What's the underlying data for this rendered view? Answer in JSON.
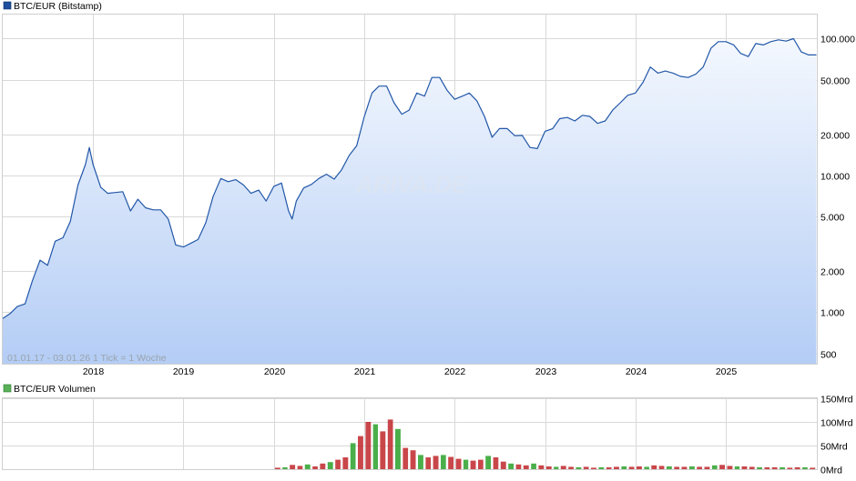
{
  "colors": {
    "price_line": "#2257a8",
    "price_fill_top": "#f4f8fe",
    "price_fill_bottom": "#b4cdf5",
    "volume_up": "#2aa12a",
    "volume_down": "#c0262a",
    "grid": "#d9d9d9",
    "legend_price_box": "#1f4f9e",
    "legend_volume_box": "#58b158"
  },
  "chart_data": [
    {
      "type": "line",
      "legend": "BTC/EUR (Bitstamp)",
      "y_scale": "log",
      "ylim": [
        420,
        150000
      ],
      "xlim": [
        "2017-01-01",
        "2026-01-03"
      ],
      "x_ticks": [
        "2018",
        "2019",
        "2020",
        "2021",
        "2022",
        "2023",
        "2024",
        "2025"
      ],
      "y_ticks": [
        {
          "value": 100000,
          "label": "100.000"
        },
        {
          "value": 50000,
          "label": "50.000"
        },
        {
          "value": 20000,
          "label": "20.000"
        },
        {
          "value": 10000,
          "label": "10.000"
        },
        {
          "value": 5000,
          "label": "5.000"
        },
        {
          "value": 2000,
          "label": "2.000"
        },
        {
          "value": 1000,
          "label": "1.000"
        },
        {
          "value": 500,
          "label": "500"
        }
      ],
      "watermark": "ARIVA.DE",
      "range_note": "01.01.17 - 03.01.26   1 Tick = 1 Woche",
      "series": [
        {
          "x": [
            "2017-01-01",
            "2017-02-01",
            "2017-03-01",
            "2017-04-01",
            "2017-05-01",
            "2017-06-01",
            "2017-07-01",
            "2017-08-01",
            "2017-09-01",
            "2017-10-01",
            "2017-11-01",
            "2017-12-01",
            "2017-12-17",
            "2018-01-01",
            "2018-02-01",
            "2018-03-01",
            "2018-04-01",
            "2018-05-01",
            "2018-06-01",
            "2018-07-01",
            "2018-08-01",
            "2018-09-01",
            "2018-10-01",
            "2018-11-01",
            "2018-12-01",
            "2019-01-01",
            "2019-02-01",
            "2019-03-01",
            "2019-04-01",
            "2019-05-01",
            "2019-06-01",
            "2019-07-01",
            "2019-08-01",
            "2019-09-01",
            "2019-10-01",
            "2019-11-01",
            "2019-12-01",
            "2020-01-01",
            "2020-02-01",
            "2020-03-01",
            "2020-03-15",
            "2020-04-01",
            "2020-05-01",
            "2020-06-01",
            "2020-07-01",
            "2020-08-01",
            "2020-09-01",
            "2020-10-01",
            "2020-11-01",
            "2020-12-01",
            "2021-01-01",
            "2021-02-01",
            "2021-03-01",
            "2021-04-01",
            "2021-05-01",
            "2021-06-01",
            "2021-07-01",
            "2021-08-01",
            "2021-09-01",
            "2021-10-01",
            "2021-11-01",
            "2021-12-01",
            "2022-01-01",
            "2022-02-01",
            "2022-03-01",
            "2022-04-01",
            "2022-05-01",
            "2022-06-01",
            "2022-07-01",
            "2022-08-01",
            "2022-09-01",
            "2022-10-01",
            "2022-11-01",
            "2022-12-01",
            "2023-01-01",
            "2023-02-01",
            "2023-03-01",
            "2023-04-01",
            "2023-05-01",
            "2023-06-01",
            "2023-07-01",
            "2023-08-01",
            "2023-09-01",
            "2023-10-01",
            "2023-11-01",
            "2023-12-01",
            "2024-01-01",
            "2024-02-01",
            "2024-03-01",
            "2024-04-01",
            "2024-05-01",
            "2024-06-01",
            "2024-07-01",
            "2024-08-01",
            "2024-09-01",
            "2024-10-01",
            "2024-11-01",
            "2024-12-01",
            "2025-01-01",
            "2025-02-01",
            "2025-03-01",
            "2025-04-01",
            "2025-05-01",
            "2025-06-01",
            "2025-07-01",
            "2025-08-01",
            "2025-09-01",
            "2025-10-01",
            "2025-11-01",
            "2025-12-01",
            "2026-01-01"
          ],
          "values": [
            900,
            980,
            1100,
            1150,
            1700,
            2400,
            2200,
            3300,
            3500,
            4600,
            8500,
            12000,
            16000,
            12000,
            8200,
            7400,
            7500,
            7600,
            5500,
            6700,
            5800,
            5600,
            5600,
            4800,
            3100,
            3000,
            3200,
            3400,
            4500,
            7000,
            9500,
            9000,
            9300,
            8500,
            7400,
            7800,
            6500,
            8300,
            8800,
            5500,
            4800,
            6500,
            8100,
            8600,
            9500,
            10200,
            9400,
            11000,
            14000,
            16500,
            27000,
            40000,
            45000,
            45000,
            34000,
            28000,
            30000,
            40000,
            38000,
            52000,
            52000,
            42000,
            36000,
            38000,
            40000,
            35000,
            27000,
            19000,
            22000,
            22000,
            19500,
            19600,
            16000,
            15700,
            21000,
            22000,
            26000,
            26500,
            25000,
            27500,
            27000,
            24000,
            25000,
            30000,
            34000,
            38500,
            40000,
            48000,
            62000,
            56000,
            58000,
            56000,
            53000,
            52000,
            55000,
            62000,
            85000,
            95000,
            95000,
            90000,
            78000,
            74000,
            92000,
            90000,
            95000,
            98000,
            96000,
            100000,
            80000,
            76000,
            76000
          ]
        }
      ]
    },
    {
      "type": "bar",
      "legend": "BTC/EUR Volumen",
      "ylim": [
        0,
        150
      ],
      "y_ticks": [
        {
          "value": 150,
          "label": "150Mrd"
        },
        {
          "value": 100,
          "label": "100Mrd"
        },
        {
          "value": 50,
          "label": "50Mrd"
        },
        {
          "value": 0,
          "label": "0Mrd"
        }
      ],
      "unit": "Mrd",
      "series": [
        {
          "x": [
            "2020-01",
            "2020-02",
            "2020-03",
            "2020-04",
            "2020-05",
            "2020-06",
            "2020-07",
            "2020-08",
            "2020-09",
            "2020-10",
            "2020-11",
            "2020-12",
            "2021-01",
            "2021-02",
            "2021-03",
            "2021-04",
            "2021-05",
            "2021-06",
            "2021-07",
            "2021-08",
            "2021-09",
            "2021-10",
            "2021-11",
            "2021-12",
            "2022-01",
            "2022-02",
            "2022-03",
            "2022-04",
            "2022-05",
            "2022-06",
            "2022-07",
            "2022-08",
            "2022-09",
            "2022-10",
            "2022-11",
            "2022-12",
            "2023-01",
            "2023-02",
            "2023-03",
            "2023-04",
            "2023-05",
            "2023-06",
            "2023-07",
            "2023-08",
            "2023-09",
            "2023-10",
            "2023-11",
            "2023-12",
            "2024-01",
            "2024-02",
            "2024-03",
            "2024-04",
            "2024-05",
            "2024-06",
            "2024-07",
            "2024-08",
            "2024-09",
            "2024-10",
            "2024-11",
            "2024-12",
            "2025-01",
            "2025-02",
            "2025-03",
            "2025-04",
            "2025-05",
            "2025-06",
            "2025-07",
            "2025-08",
            "2025-09",
            "2025-10",
            "2025-11",
            "2025-12"
          ],
          "values": [
            3,
            4,
            9,
            7,
            10,
            6,
            12,
            15,
            20,
            25,
            55,
            70,
            100,
            95,
            80,
            105,
            85,
            45,
            40,
            30,
            25,
            28,
            30,
            26,
            22,
            20,
            18,
            20,
            28,
            25,
            16,
            12,
            10,
            8,
            12,
            8,
            6,
            5,
            7,
            5,
            4,
            5,
            3,
            4,
            4,
            5,
            6,
            5,
            6,
            5,
            8,
            7,
            6,
            5,
            5,
            6,
            5,
            5,
            8,
            9,
            7,
            6,
            6,
            5,
            4,
            4,
            4,
            4,
            3,
            4,
            4,
            3
          ]
        }
      ]
    }
  ]
}
